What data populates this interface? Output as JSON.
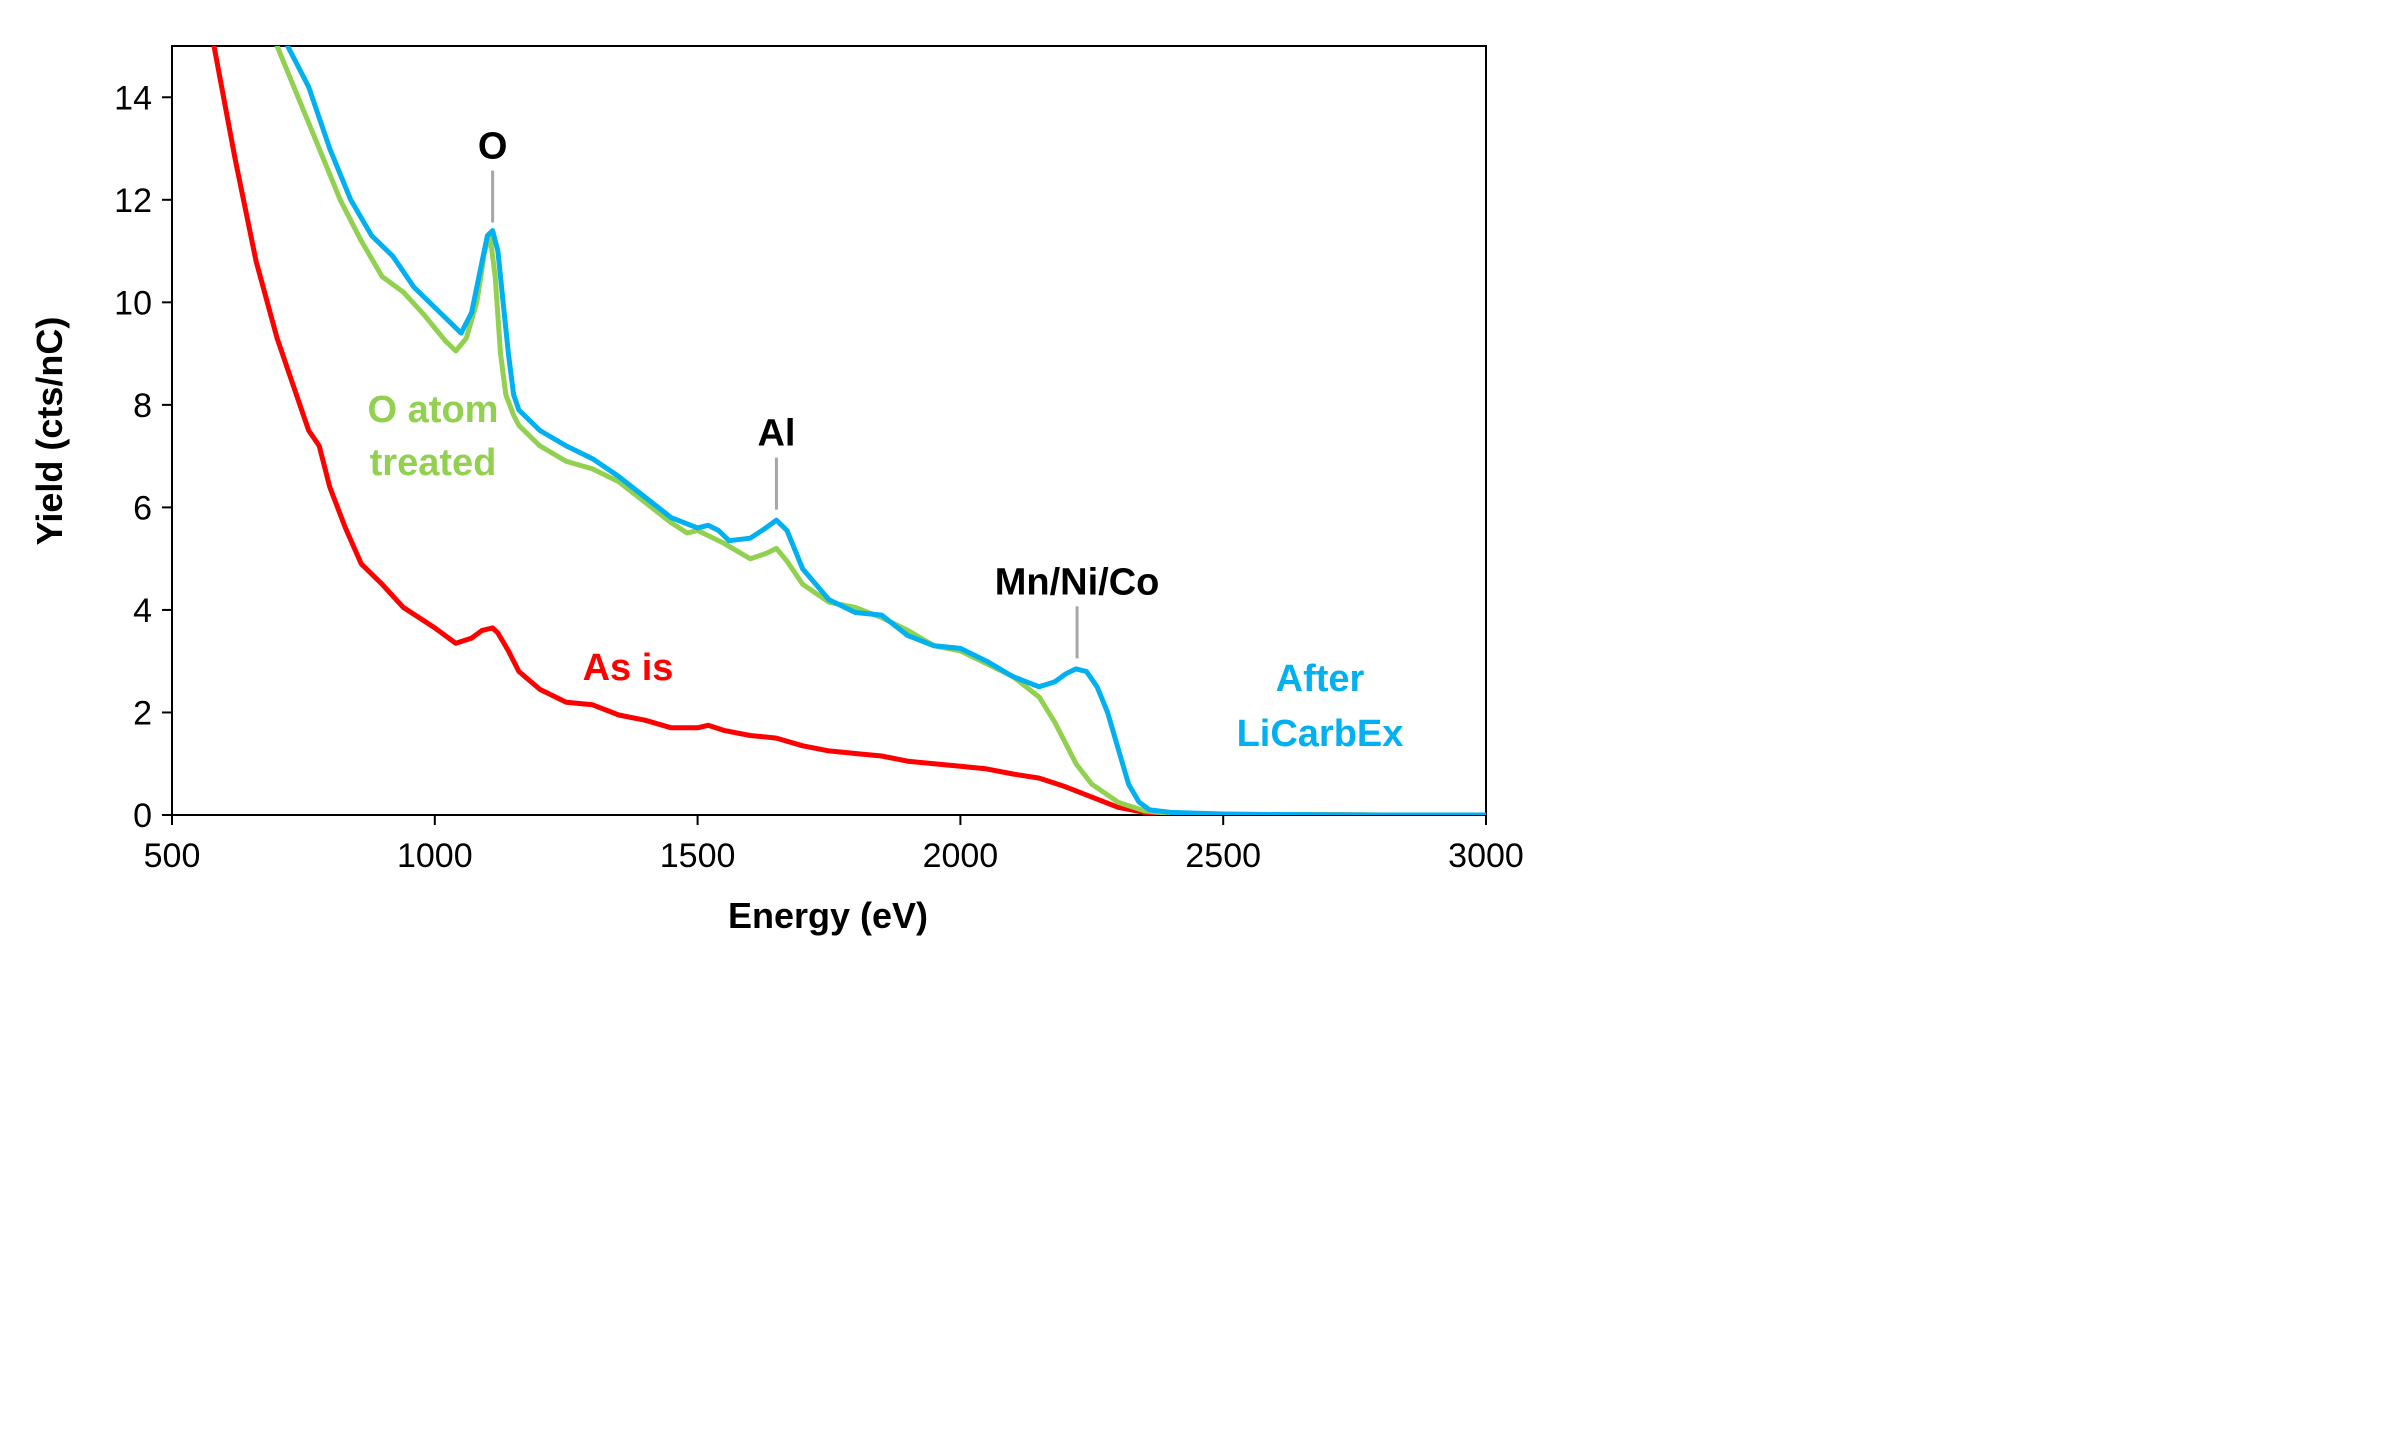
{
  "chart_data": {
    "type": "line",
    "xlabel": "Energy (eV)",
    "ylabel": "Yield (cts/nC)",
    "xlim": [
      500,
      3000
    ],
    "ylim": [
      0,
      15
    ],
    "xticks": [
      500,
      1000,
      1500,
      2000,
      2500,
      3000
    ],
    "yticks": [
      0,
      2,
      4,
      6,
      8,
      10,
      12,
      14
    ],
    "grid": false,
    "legend": "none",
    "series": [
      {
        "name": "As is",
        "color": "#ff0000",
        "x": [
          580,
          620,
          660,
          700,
          740,
          760,
          780,
          800,
          830,
          860,
          900,
          940,
          1000,
          1040,
          1070,
          1090,
          1110,
          1120,
          1140,
          1160,
          1200,
          1250,
          1300,
          1350,
          1400,
          1450,
          1500,
          1520,
          1550,
          1600,
          1650,
          1700,
          1750,
          1800,
          1850,
          1900,
          1950,
          2000,
          2050,
          2100,
          2150,
          2200,
          2250,
          2300,
          2350,
          2400,
          2500,
          2600,
          2800,
          3000
        ],
        "y": [
          15,
          12.8,
          10.8,
          9.3,
          8.1,
          7.5,
          7.2,
          6.4,
          5.6,
          4.9,
          4.5,
          4.05,
          3.65,
          3.35,
          3.45,
          3.6,
          3.65,
          3.55,
          3.2,
          2.8,
          2.45,
          2.2,
          2.15,
          1.95,
          1.85,
          1.7,
          1.7,
          1.75,
          1.65,
          1.55,
          1.5,
          1.35,
          1.25,
          1.2,
          1.15,
          1.05,
          1.0,
          0.95,
          0.9,
          0.8,
          0.72,
          0.55,
          0.35,
          0.15,
          0.05,
          0.02,
          0.01,
          0.01,
          0,
          0
        ]
      },
      {
        "name": "O atom treated",
        "color": "#92d050",
        "x": [
          700,
          740,
          780,
          820,
          860,
          900,
          940,
          980,
          1000,
          1020,
          1040,
          1060,
          1080,
          1095,
          1105,
          1115,
          1125,
          1135,
          1150,
          1160,
          1200,
          1250,
          1300,
          1350,
          1400,
          1450,
          1480,
          1500,
          1550,
          1600,
          1630,
          1650,
          1670,
          1700,
          1750,
          1800,
          1850,
          1900,
          1950,
          2000,
          2050,
          2100,
          2150,
          2180,
          2200,
          2220,
          2250,
          2300,
          2350,
          2400,
          2500,
          2600,
          2800,
          3000
        ],
        "y": [
          15,
          14.0,
          13.0,
          12.0,
          11.2,
          10.5,
          10.2,
          9.75,
          9.5,
          9.25,
          9.05,
          9.3,
          10.0,
          11.0,
          11.3,
          10.5,
          9.0,
          8.2,
          7.8,
          7.6,
          7.2,
          6.9,
          6.75,
          6.5,
          6.1,
          5.7,
          5.5,
          5.55,
          5.3,
          5.0,
          5.1,
          5.2,
          4.95,
          4.5,
          4.15,
          4.05,
          3.85,
          3.6,
          3.3,
          3.2,
          2.95,
          2.7,
          2.3,
          1.8,
          1.4,
          1.0,
          0.6,
          0.25,
          0.08,
          0.03,
          0.01,
          0.01,
          0,
          0
        ]
      },
      {
        "name": "After LiCarbEx",
        "color": "#00b0f0",
        "x": [
          720,
          760,
          800,
          840,
          880,
          920,
          960,
          1000,
          1030,
          1050,
          1070,
          1090,
          1100,
          1110,
          1120,
          1130,
          1140,
          1150,
          1160,
          1200,
          1250,
          1300,
          1350,
          1400,
          1450,
          1500,
          1520,
          1540,
          1560,
          1600,
          1630,
          1650,
          1670,
          1700,
          1750,
          1800,
          1850,
          1900,
          1950,
          2000,
          2050,
          2100,
          2150,
          2180,
          2200,
          2220,
          2240,
          2260,
          2280,
          2300,
          2320,
          2340,
          2360,
          2400,
          2500,
          2600,
          2800,
          3000
        ],
        "y": [
          15,
          14.2,
          13.0,
          12.0,
          11.3,
          10.9,
          10.3,
          9.9,
          9.6,
          9.4,
          9.8,
          10.8,
          11.3,
          11.4,
          11.0,
          10.0,
          9.0,
          8.2,
          7.9,
          7.5,
          7.2,
          6.95,
          6.6,
          6.2,
          5.8,
          5.6,
          5.65,
          5.55,
          5.35,
          5.4,
          5.6,
          5.75,
          5.55,
          4.8,
          4.2,
          3.95,
          3.9,
          3.5,
          3.3,
          3.25,
          3.0,
          2.7,
          2.5,
          2.6,
          2.75,
          2.85,
          2.8,
          2.5,
          2.0,
          1.3,
          0.6,
          0.25,
          0.1,
          0.05,
          0.02,
          0.01,
          0,
          0
        ]
      }
    ],
    "annotations": [
      {
        "text": "O",
        "x": 1110,
        "y": 11.4
      },
      {
        "text": "Al",
        "x": 1650,
        "y": 5.8
      },
      {
        "text": "Mn/Ni/Co",
        "x": 2222,
        "y": 2.9
      }
    ],
    "series_labels": [
      "As is",
      "O atom",
      "treated",
      "After",
      "LiCarbEx"
    ]
  }
}
